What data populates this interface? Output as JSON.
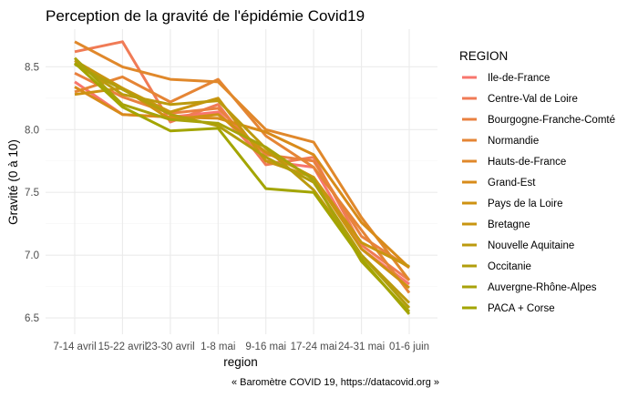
{
  "chart_data": {
    "type": "line",
    "title": "Perception de la gravité de l'épidémie Covid19",
    "xlabel": "region",
    "ylabel": "Gravité (0 à 10)",
    "caption": "« Baromètre COVID 19, https://datacovid.org »",
    "categories": [
      "7-14 avril",
      "15-22 avril",
      "23-30 avril",
      "1-8 mai",
      "9-16 mai",
      "17-24 mai",
      "24-31 mai",
      "01-6 juin"
    ],
    "ylim": [
      6.37,
      8.8
    ],
    "yticks": [
      6.5,
      7.0,
      7.5,
      8.0,
      8.5
    ],
    "ytick_labels": [
      "6.5",
      "7.0",
      "7.5",
      "8.0",
      "8.5"
    ],
    "grid": true,
    "legend": {
      "title": "REGION",
      "position": "right"
    },
    "series": [
      {
        "name": "Ile-de-France",
        "color": "#F8766D",
        "values": [
          8.38,
          8.12,
          8.1,
          8.14,
          7.75,
          7.7,
          7.05,
          6.77
        ]
      },
      {
        "name": "Centre-Val de Loire",
        "color": "#F07B56",
        "values": [
          8.62,
          8.7,
          8.06,
          8.2,
          7.72,
          7.78,
          7.08,
          6.8
        ]
      },
      {
        "name": "Bourgogne-Franche-Comté",
        "color": "#E98140",
        "values": [
          8.45,
          8.26,
          8.13,
          8.17,
          7.8,
          7.75,
          7.15,
          6.9
        ]
      },
      {
        "name": "Normandie",
        "color": "#E58535",
        "values": [
          8.3,
          8.42,
          8.22,
          8.4,
          7.95,
          7.7,
          7.2,
          6.7
        ]
      },
      {
        "name": "Hauts-de-France",
        "color": "#E0882B",
        "values": [
          8.7,
          8.5,
          8.4,
          8.38,
          8.0,
          7.9,
          7.3,
          6.8
        ]
      },
      {
        "name": "Grand-Est",
        "color": "#D88B1A",
        "values": [
          8.34,
          8.12,
          8.1,
          8.09,
          7.98,
          7.8,
          7.26,
          6.9
        ]
      },
      {
        "name": "Pays de la Loire",
        "color": "#CE9212",
        "values": [
          8.28,
          8.33,
          8.08,
          8.12,
          7.82,
          7.62,
          7.05,
          6.74
        ]
      },
      {
        "name": "Bretagne",
        "color": "#C89510",
        "values": [
          8.55,
          8.33,
          8.14,
          8.25,
          7.75,
          7.62,
          7.1,
          6.91
        ]
      },
      {
        "name": "Nouvelle Aquitaine",
        "color": "#BC9A0E",
        "values": [
          8.53,
          8.28,
          8.2,
          8.23,
          7.85,
          7.52,
          7.0,
          6.62
        ]
      },
      {
        "name": "Occitanie",
        "color": "#B29E0C",
        "values": [
          8.52,
          8.32,
          8.12,
          8.03,
          7.78,
          7.58,
          7.0,
          6.58
        ]
      },
      {
        "name": "Auvergne-Rhône-Alpes",
        "color": "#A8A20A",
        "values": [
          8.57,
          8.2,
          8.08,
          8.05,
          7.86,
          7.6,
          6.95,
          6.55
        ]
      },
      {
        "name": "PACA + Corse",
        "color": "#A3A500",
        "values": [
          8.53,
          8.18,
          7.99,
          8.01,
          7.53,
          7.5,
          6.97,
          6.53
        ]
      }
    ]
  }
}
